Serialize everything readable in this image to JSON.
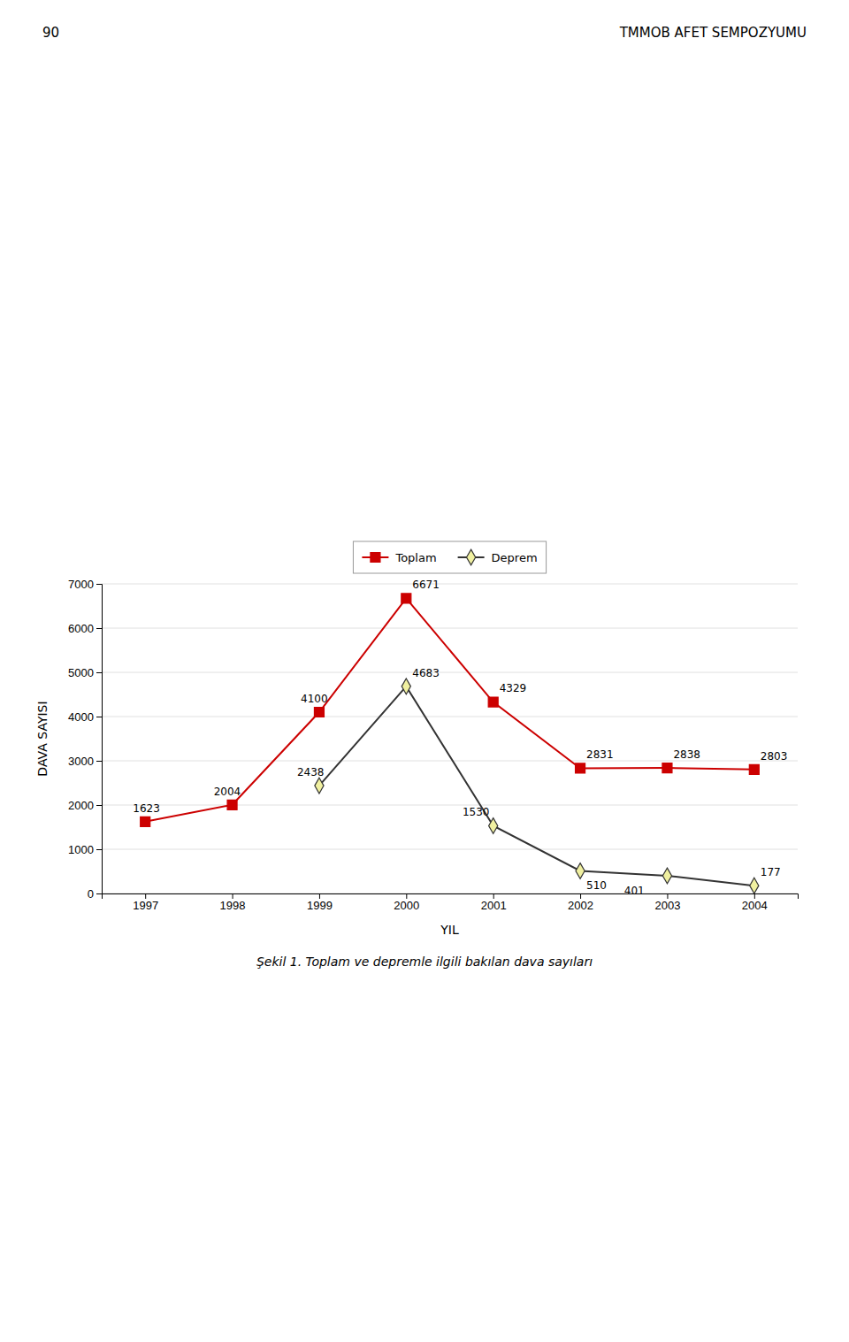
{
  "chart_data": {
    "type": "line",
    "title": "Şekil 1. Toplam ve depremle ilgili bakılan dava sayıları",
    "annotations": [
      "90",
      "TMMOB AFET SEMPOZYUMU"
    ],
    "x_label": "YIL",
    "y_label": "DAVA SAYISI",
    "x": [
      1997,
      1998,
      1999,
      2000,
      2001,
      2002,
      2003,
      2004
    ],
    "series": [
      {
        "name": "Toplam",
        "color": "#cc0000",
        "marker": "square",
        "values": [
          1623,
          2004,
          4100,
          6671,
          4329,
          2831,
          2838,
          2803
        ]
      },
      {
        "name": "Deprem",
        "color": "#333333",
        "marker": "diamond",
        "values": [
          null,
          null,
          2438,
          4683,
          1530,
          510,
          401,
          177
        ]
      }
    ],
    "xlim": [
      1996.5,
      2004.5
    ],
    "xticks": [
      1997,
      1998,
      1999,
      2000,
      2001,
      2002,
      2003,
      2004
    ],
    "ylim": [
      0,
      7000
    ],
    "yticks": [
      0,
      1000,
      2000,
      3000,
      4000,
      5000,
      6000,
      7000
    ],
    "grid": true,
    "legend": "top",
    "data_labels": true
  }
}
